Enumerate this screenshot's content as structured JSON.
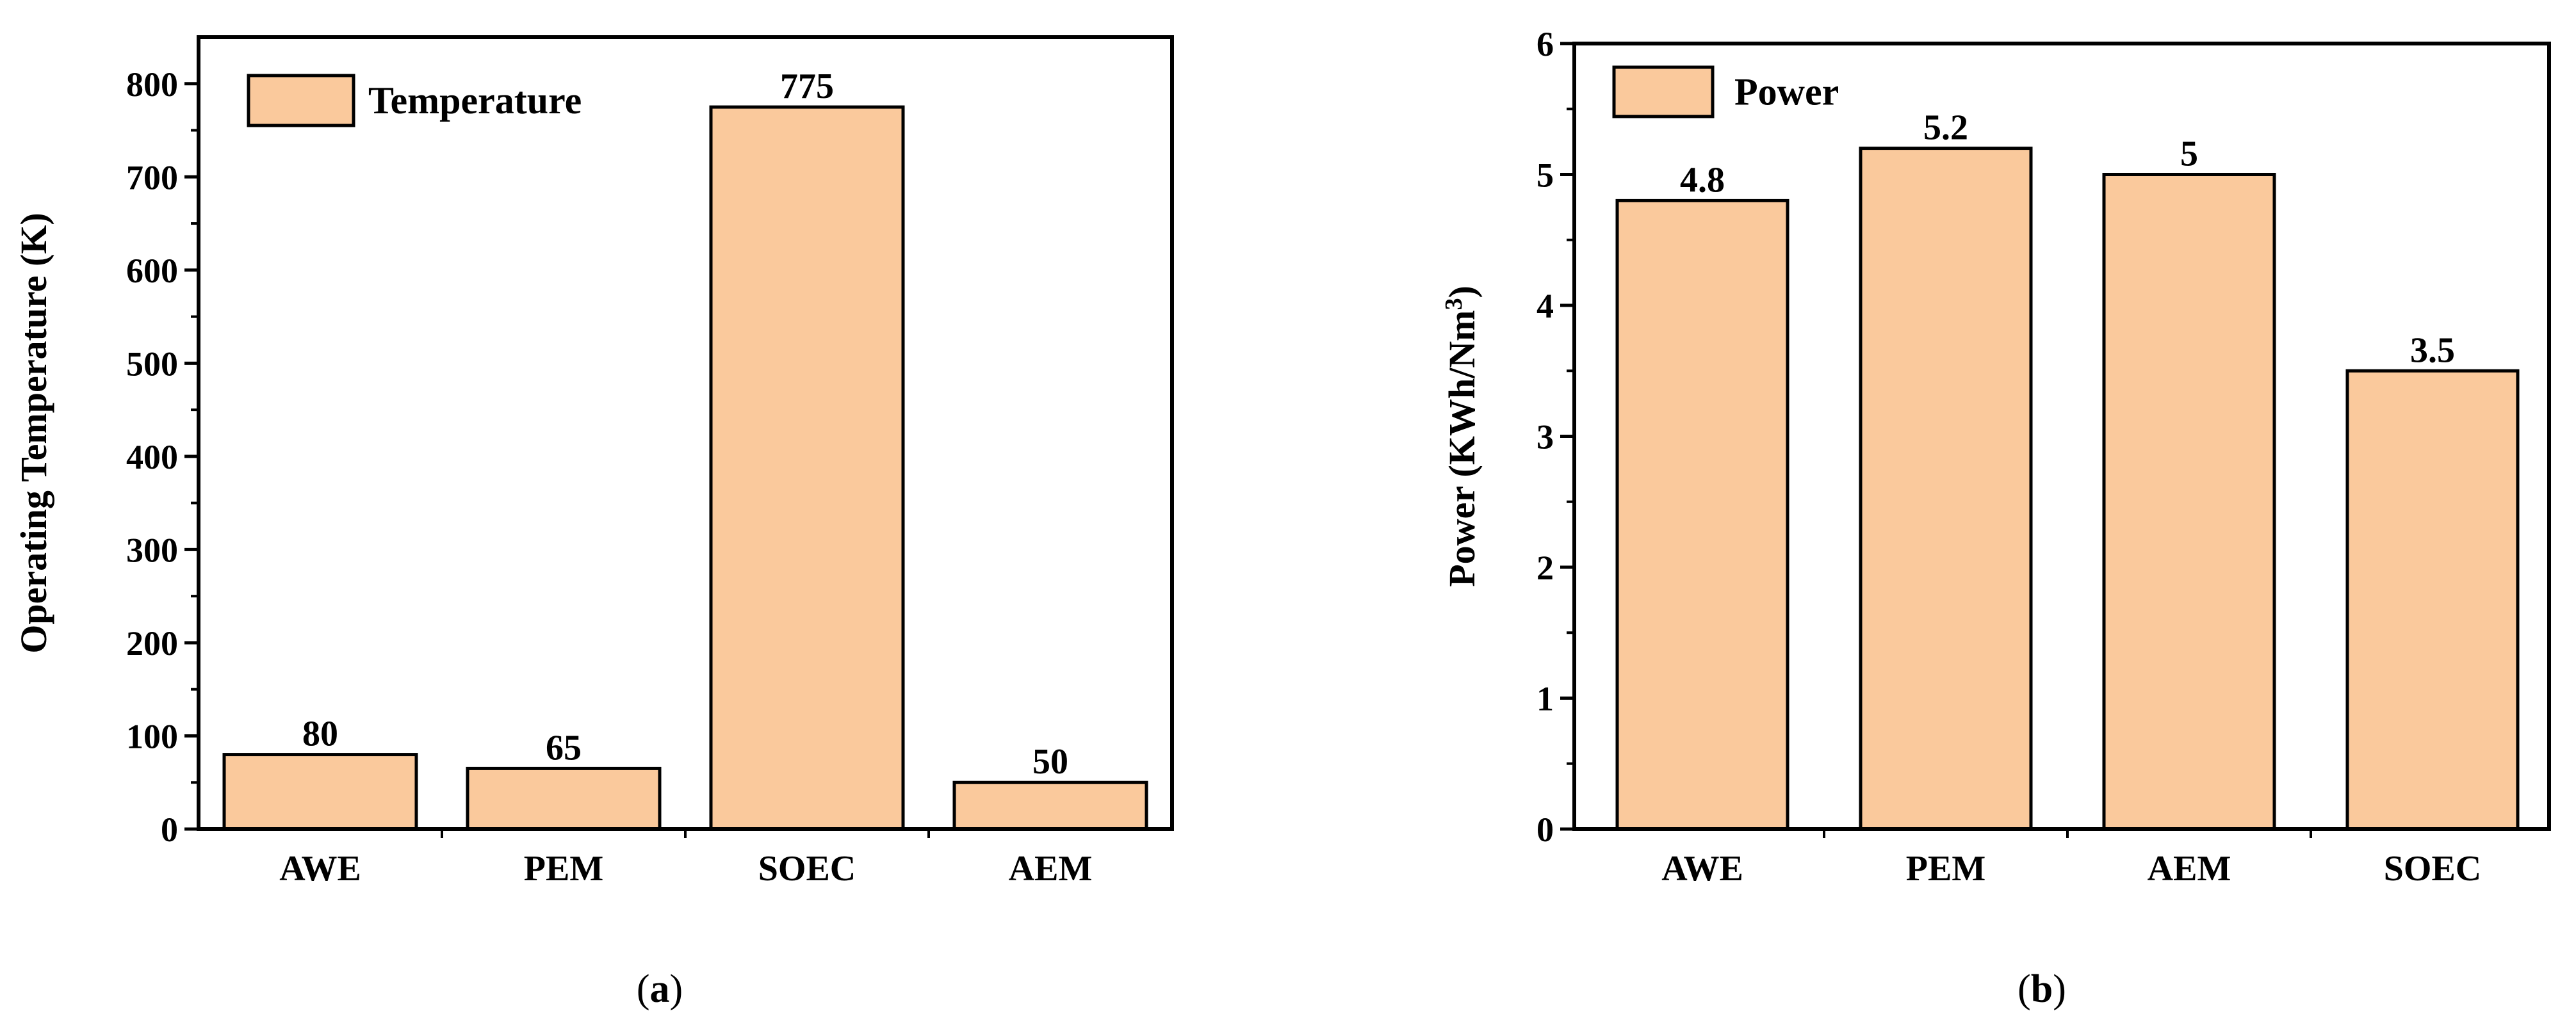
{
  "chart_data": [
    {
      "type": "bar",
      "panel_label": "a",
      "categories": [
        "AWE",
        "PEM",
        "SOEC",
        "AEM"
      ],
      "series": [
        {
          "name": "Temperature",
          "values": [
            80,
            65,
            775,
            50
          ]
        }
      ],
      "data_labels": [
        "80",
        "65",
        "775",
        "50"
      ],
      "ylabel": "Operating Temperature (K)",
      "ylim": [
        0,
        850
      ],
      "yticks": [
        0,
        100,
        200,
        300,
        400,
        500,
        600,
        700,
        800
      ],
      "legend": "top-left",
      "grid": false,
      "bar_color": "#FAC99C"
    },
    {
      "type": "bar",
      "panel_label": "b",
      "categories": [
        "AWE",
        "PEM",
        "AEM",
        "SOEC"
      ],
      "series": [
        {
          "name": "Power",
          "values": [
            4.8,
            5.2,
            5,
            3.5
          ]
        }
      ],
      "data_labels": [
        "4.8",
        "5.2",
        "5",
        "3.5"
      ],
      "ylabel": "Power (KWh/Nm",
      "ylabel_superscript": "3",
      "ylabel_suffix": ")",
      "ylim": [
        0,
        6
      ],
      "yticks": [
        0,
        1,
        2,
        3,
        4,
        5,
        6
      ],
      "legend": "top-left",
      "grid": false,
      "bar_color": "#FAC99C"
    }
  ]
}
